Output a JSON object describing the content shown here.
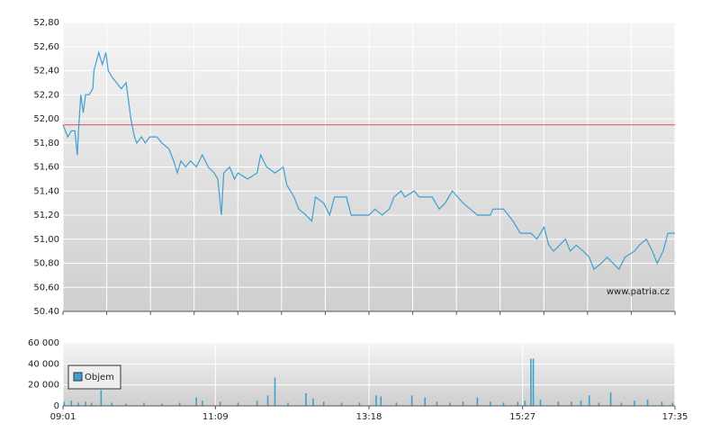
{
  "chart_data": [
    {
      "type": "line",
      "color": "#3fa0cf",
      "annotation": "www.patria.cz",
      "reference_line": {
        "value": 51.95,
        "color": "#e05050"
      },
      "xlim": [
        "09:01",
        "17:35"
      ],
      "ylim": [
        50.4,
        52.8
      ],
      "yticks": [
        {
          "value": 50.4,
          "label": "50.40"
        },
        {
          "value": 50.6,
          "label": "50,60"
        },
        {
          "value": 50.8,
          "label": "50,80"
        },
        {
          "value": 51.0,
          "label": "51,00"
        },
        {
          "value": 51.2,
          "label": "51,20"
        },
        {
          "value": 51.4,
          "label": "51,40"
        },
        {
          "value": 51.6,
          "label": "51,60"
        },
        {
          "value": 51.8,
          "label": "51,80"
        },
        {
          "value": 52.0,
          "label": "52,00"
        },
        {
          "value": 52.2,
          "label": "52,20"
        },
        {
          "value": 52.4,
          "label": "52,40"
        },
        {
          "value": 52.6,
          "label": "52,60"
        },
        {
          "value": 52.8,
          "label": "52,80"
        }
      ],
      "x": [
        "09:01",
        "09:05",
        "09:08",
        "09:11",
        "09:13",
        "09:14",
        "09:16",
        "09:18",
        "09:20",
        "09:23",
        "09:26",
        "09:27",
        "09:31",
        "09:34",
        "09:37",
        "09:39",
        "09:42",
        "09:46",
        "09:50",
        "09:54",
        "09:56",
        "09:58",
        "10:01",
        "10:03",
        "10:07",
        "10:10",
        "10:14",
        "10:20",
        "10:24",
        "10:30",
        "10:34",
        "10:37",
        "10:40",
        "10:44",
        "10:48",
        "10:53",
        "10:58",
        "11:03",
        "11:08",
        "11:11",
        "11:14",
        "11:16",
        "11:21",
        "11:25",
        "11:28",
        "11:36",
        "11:44",
        "11:47",
        "11:52",
        "11:59",
        "12:06",
        "12:09",
        "12:12",
        "12:15",
        "12:19",
        "12:25",
        "12:30",
        "12:33",
        "12:40",
        "12:45",
        "12:49",
        "12:59",
        "13:03",
        "13:18",
        "13:23",
        "13:29",
        "13:35",
        "13:39",
        "13:45",
        "13:48",
        "13:56",
        "14:00",
        "14:11",
        "14:17",
        "14:22",
        "14:28",
        "14:37",
        "14:43",
        "14:49",
        "15:00",
        "15:02",
        "15:11",
        "15:19",
        "15:25",
        "15:34",
        "15:39",
        "15:45",
        "15:49",
        "15:53",
        "15:58",
        "16:03",
        "16:07",
        "16:12",
        "16:18",
        "16:23",
        "16:27",
        "16:33",
        "16:38",
        "16:48",
        "16:53",
        "17:01",
        "17:05",
        "17:11",
        "17:16",
        "17:20",
        "17:25",
        "17:29",
        "17:35"
      ],
      "values": [
        51.95,
        51.85,
        51.9,
        51.9,
        51.7,
        51.9,
        52.2,
        52.05,
        52.2,
        52.2,
        52.25,
        52.4,
        52.55,
        52.45,
        52.55,
        52.4,
        52.35,
        52.3,
        52.25,
        52.3,
        52.15,
        52.0,
        51.85,
        51.8,
        51.85,
        51.8,
        51.85,
        51.85,
        51.8,
        51.75,
        51.65,
        51.55,
        51.65,
        51.6,
        51.65,
        51.6,
        51.7,
        51.6,
        51.55,
        51.5,
        51.2,
        51.55,
        51.6,
        51.5,
        51.55,
        51.5,
        51.55,
        51.7,
        51.6,
        51.55,
        51.6,
        51.45,
        51.4,
        51.35,
        51.25,
        51.2,
        51.15,
        51.35,
        51.3,
        51.2,
        51.35,
        51.35,
        51.2,
        51.2,
        51.25,
        51.2,
        51.25,
        51.35,
        51.4,
        51.35,
        51.4,
        51.35,
        51.35,
        51.25,
        51.3,
        51.4,
        51.3,
        51.25,
        51.2,
        51.2,
        51.25,
        51.25,
        51.15,
        51.05,
        51.05,
        51.0,
        51.1,
        50.95,
        50.9,
        50.95,
        51.0,
        50.9,
        50.95,
        50.9,
        50.85,
        50.75,
        50.8,
        50.85,
        50.75,
        50.85,
        50.9,
        50.95,
        51.0,
        50.9,
        50.8,
        50.9,
        51.05,
        51.05
      ]
    },
    {
      "type": "bar",
      "xlim": [
        "09:01",
        "17:35"
      ],
      "xticks": [
        "09:01",
        "11:09",
        "13:18",
        "15:27",
        "17:35"
      ],
      "ylim": [
        0,
        60000
      ],
      "yticks": [
        0,
        {
          "value": 20000,
          "label": "20 000"
        },
        {
          "value": 40000,
          "label": "40 000"
        },
        {
          "value": 60000,
          "label": "60 000"
        }
      ],
      "x": [
        "09:02",
        "09:08",
        "09:14",
        "09:20",
        "09:25",
        "09:33",
        "09:42",
        "09:54",
        "10:09",
        "10:24",
        "10:39",
        "10:53",
        "10:58",
        "11:13",
        "11:28",
        "11:44",
        "11:53",
        "11:59",
        "12:10",
        "12:25",
        "12:31",
        "12:40",
        "12:55",
        "13:10",
        "13:24",
        "13:28",
        "13:41",
        "13:54",
        "14:05",
        "14:15",
        "14:26",
        "14:37",
        "14:49",
        "15:00",
        "15:11",
        "15:23",
        "15:29",
        "15:34",
        "15:36",
        "15:42",
        "15:57",
        "16:08",
        "16:16",
        "16:23",
        "16:31",
        "16:41",
        "16:50",
        "17:01",
        "17:12",
        "17:24",
        "17:33"
      ],
      "series": [
        {
          "name": "Objem",
          "color": "#3fa0cf",
          "values": [
            4000,
            5000,
            3000,
            4000,
            3000,
            15000,
            3000,
            2000,
            3000,
            2000,
            3000,
            8000,
            5000,
            4000,
            3000,
            5000,
            10000,
            27000,
            3000,
            12000,
            7000,
            4000,
            3000,
            3000,
            10000,
            9000,
            3000,
            10000,
            8000,
            4000,
            3000,
            4000,
            8000,
            4000,
            3000,
            4000,
            5000,
            45000,
            45000,
            6000,
            4000,
            4000,
            5000,
            10000,
            3000,
            13000,
            3000,
            5000,
            6000,
            4000,
            3000
          ]
        }
      ]
    }
  ]
}
